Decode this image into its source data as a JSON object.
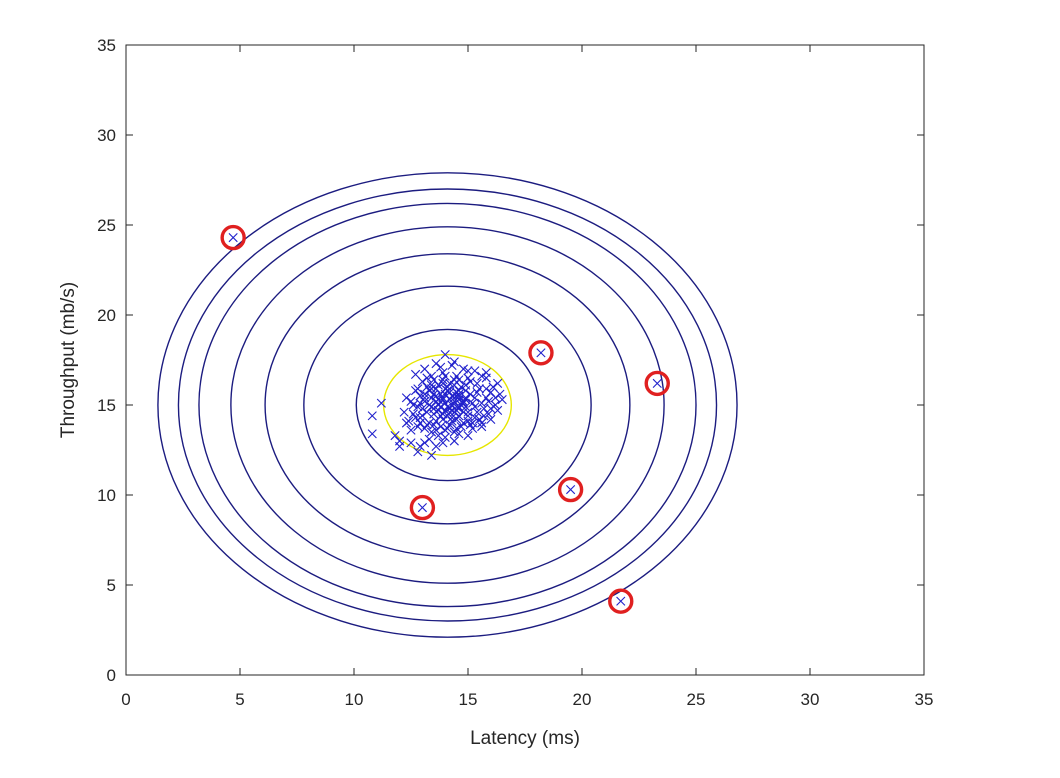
{
  "chart_data": {
    "type": "scatter",
    "xlabel": "Latency (ms)",
    "ylabel": "Throughput (mb/s)",
    "xlim": [
      0,
      35
    ],
    "ylim": [
      0,
      35
    ],
    "xticks": [
      0,
      5,
      10,
      15,
      20,
      25,
      30,
      35
    ],
    "yticks": [
      0,
      5,
      10,
      15,
      20,
      25,
      30,
      35
    ],
    "grid": false,
    "colors": {
      "points": "#2222cc",
      "contours": "#1c1c80",
      "threshold_contour": "#e6e600",
      "outlier_circles": "#e02020",
      "axes": "#262626"
    },
    "gaussian_contours": {
      "center": [
        14.1,
        15.0
      ],
      "semi_axes": [
        [
          4.0,
          4.2
        ],
        [
          6.3,
          6.6
        ],
        [
          8.0,
          8.4
        ],
        [
          9.5,
          9.9
        ],
        [
          10.9,
          11.2
        ],
        [
          11.8,
          12.0
        ],
        [
          12.7,
          12.9
        ]
      ]
    },
    "threshold_contour": {
      "center": [
        14.1,
        15.0
      ],
      "semi_axes": [
        2.8,
        2.8
      ]
    },
    "anomalies": [
      {
        "x": 4.7,
        "y": 24.3
      },
      {
        "x": 13.0,
        "y": 9.3
      },
      {
        "x": 18.2,
        "y": 17.9
      },
      {
        "x": 19.5,
        "y": 10.3
      },
      {
        "x": 23.3,
        "y": 16.2
      },
      {
        "x": 21.7,
        "y": 4.1
      }
    ],
    "points": [
      [
        10.8,
        14.4
      ],
      [
        10.8,
        13.4
      ],
      [
        11.2,
        15.1
      ],
      [
        11.8,
        13.3
      ],
      [
        12.0,
        12.7
      ],
      [
        12.0,
        13.0
      ],
      [
        12.3,
        14.0
      ],
      [
        12.5,
        12.9
      ],
      [
        12.5,
        13.6
      ],
      [
        12.8,
        12.4
      ],
      [
        12.9,
        12.7
      ],
      [
        13.1,
        12.9
      ],
      [
        13.4,
        12.2
      ],
      [
        13.6,
        12.7
      ],
      [
        12.7,
        16.7
      ],
      [
        13.1,
        17.0
      ],
      [
        13.6,
        17.3
      ],
      [
        14.0,
        17.8
      ],
      [
        14.3,
        17.2
      ],
      [
        14.8,
        17.0
      ],
      [
        15.3,
        16.9
      ],
      [
        15.8,
        16.5
      ],
      [
        16.3,
        16.2
      ],
      [
        16.4,
        15.6
      ],
      [
        16.2,
        15.0
      ],
      [
        15.9,
        14.5
      ],
      [
        15.6,
        14.0
      ],
      [
        15.2,
        13.7
      ],
      [
        14.6,
        13.4
      ],
      [
        14.0,
        13.2
      ],
      [
        13.4,
        13.5
      ],
      [
        12.9,
        14.0
      ],
      [
        12.6,
        14.5
      ],
      [
        12.5,
        15.2
      ],
      [
        12.7,
        15.8
      ],
      [
        13.0,
        16.3
      ],
      [
        13.4,
        16.6
      ],
      [
        13.9,
        16.8
      ],
      [
        14.5,
        16.6
      ],
      [
        15.1,
        16.3
      ],
      [
        15.5,
        15.9
      ],
      [
        15.8,
        15.4
      ],
      [
        15.7,
        14.8
      ],
      [
        15.3,
        14.3
      ],
      [
        14.8,
        14.0
      ],
      [
        14.2,
        13.9
      ],
      [
        13.6,
        14.1
      ],
      [
        13.2,
        14.6
      ],
      [
        13.1,
        15.2
      ],
      [
        13.3,
        15.8
      ],
      [
        13.7,
        16.1
      ],
      [
        14.2,
        16.2
      ],
      [
        14.7,
        16.0
      ],
      [
        15.1,
        15.6
      ],
      [
        15.2,
        15.1
      ],
      [
        15.0,
        14.6
      ],
      [
        14.6,
        14.4
      ],
      [
        14.1,
        14.4
      ],
      [
        13.7,
        14.7
      ],
      [
        13.6,
        15.2
      ],
      [
        13.8,
        15.6
      ],
      [
        14.2,
        15.7
      ],
      [
        14.6,
        15.5
      ],
      [
        14.8,
        15.1
      ],
      [
        14.6,
        14.8
      ],
      [
        14.2,
        14.8
      ],
      [
        14.0,
        15.1
      ],
      [
        14.2,
        15.3
      ],
      [
        14.4,
        15.2
      ],
      [
        14.3,
        15.0
      ],
      [
        13.0,
        14.8
      ],
      [
        12.8,
        13.8
      ],
      [
        13.3,
        13.1
      ],
      [
        13.9,
        12.9
      ],
      [
        14.4,
        13.0
      ],
      [
        15.0,
        13.3
      ],
      [
        15.6,
        13.8
      ],
      [
        16.0,
        14.2
      ],
      [
        16.3,
        14.7
      ],
      [
        16.5,
        15.3
      ],
      [
        16.1,
        16.0
      ],
      [
        15.6,
        16.6
      ],
      [
        15.0,
        16.9
      ],
      [
        14.4,
        17.4
      ],
      [
        13.8,
        17.1
      ],
      [
        13.2,
        16.5
      ],
      [
        12.8,
        15.9
      ],
      [
        12.3,
        15.4
      ],
      [
        12.2,
        14.6
      ],
      [
        12.4,
        14.1
      ],
      [
        13.5,
        13.9
      ],
      [
        14.0,
        13.6
      ],
      [
        14.5,
        13.7
      ],
      [
        15.0,
        14.1
      ],
      [
        15.4,
        14.6
      ],
      [
        15.6,
        15.1
      ],
      [
        15.4,
        15.7
      ],
      [
        14.9,
        16.1
      ],
      [
        14.4,
        16.4
      ],
      [
        13.9,
        16.4
      ],
      [
        13.4,
        16.1
      ],
      [
        13.1,
        15.6
      ],
      [
        12.9,
        15.1
      ],
      [
        13.0,
        14.4
      ],
      [
        13.3,
        14.0
      ],
      [
        13.8,
        13.8
      ],
      [
        14.3,
        14.1
      ],
      [
        14.8,
        14.6
      ],
      [
        14.9,
        15.3
      ],
      [
        14.6,
        15.8
      ],
      [
        14.1,
        16.0
      ],
      [
        13.6,
        15.9
      ],
      [
        13.4,
        15.4
      ],
      [
        13.5,
        14.8
      ],
      [
        13.9,
        14.5
      ],
      [
        14.4,
        14.6
      ],
      [
        14.7,
        15.0
      ],
      [
        14.5,
        15.5
      ],
      [
        14.0,
        15.6
      ],
      [
        13.7,
        15.3
      ],
      [
        13.8,
        14.9
      ],
      [
        14.2,
        14.6
      ],
      [
        14.6,
        14.9
      ],
      [
        14.4,
        15.4
      ],
      [
        13.9,
        15.4
      ],
      [
        15.8,
        16.8
      ],
      [
        16.0,
        15.7
      ],
      [
        15.9,
        15.2
      ],
      [
        15.5,
        14.2
      ],
      [
        15.1,
        13.9
      ],
      [
        14.4,
        13.5
      ],
      [
        13.7,
        13.3
      ],
      [
        13.1,
        13.7
      ],
      [
        12.7,
        14.3
      ],
      [
        12.6,
        15.0
      ],
      [
        12.9,
        15.5
      ],
      [
        13.2,
        16.0
      ],
      [
        13.5,
        16.4
      ],
      [
        14.0,
        16.6
      ],
      [
        14.6,
        16.4
      ],
      [
        15.0,
        16.5
      ],
      [
        15.4,
        16.2
      ],
      [
        15.8,
        15.9
      ],
      [
        16.2,
        15.4
      ],
      [
        16.0,
        14.8
      ],
      [
        15.7,
        14.4
      ],
      [
        15.2,
        14.0
      ],
      [
        14.7,
        13.8
      ],
      [
        14.1,
        13.7
      ],
      [
        13.6,
        13.6
      ],
      [
        13.2,
        13.9
      ],
      [
        12.9,
        14.3
      ],
      [
        12.8,
        14.9
      ],
      [
        13.1,
        15.4
      ],
      [
        13.4,
        15.9
      ],
      [
        13.9,
        16.2
      ],
      [
        14.4,
        16.1
      ],
      [
        14.9,
        15.8
      ],
      [
        15.3,
        15.4
      ],
      [
        15.3,
        14.9
      ],
      [
        15.0,
        14.4
      ],
      [
        14.5,
        14.2
      ],
      [
        13.9,
        14.2
      ],
      [
        13.5,
        14.5
      ],
      [
        13.3,
        15.0
      ],
      [
        13.5,
        15.6
      ],
      [
        14.0,
        15.9
      ],
      [
        14.5,
        15.7
      ],
      [
        14.9,
        15.4
      ],
      [
        14.9,
        14.9
      ],
      [
        14.3,
        14.3
      ],
      [
        13.8,
        14.4
      ],
      [
        13.4,
        14.9
      ],
      [
        13.6,
        15.5
      ],
      [
        14.1,
        15.8
      ],
      [
        14.6,
        15.6
      ],
      [
        14.8,
        15.2
      ],
      [
        14.5,
        14.7
      ],
      [
        14.0,
        14.7
      ],
      [
        13.7,
        15.0
      ],
      [
        13.9,
        15.3
      ],
      [
        14.3,
        15.5
      ],
      [
        14.6,
        15.3
      ],
      [
        14.5,
        14.9
      ],
      [
        14.1,
        14.9
      ]
    ]
  }
}
